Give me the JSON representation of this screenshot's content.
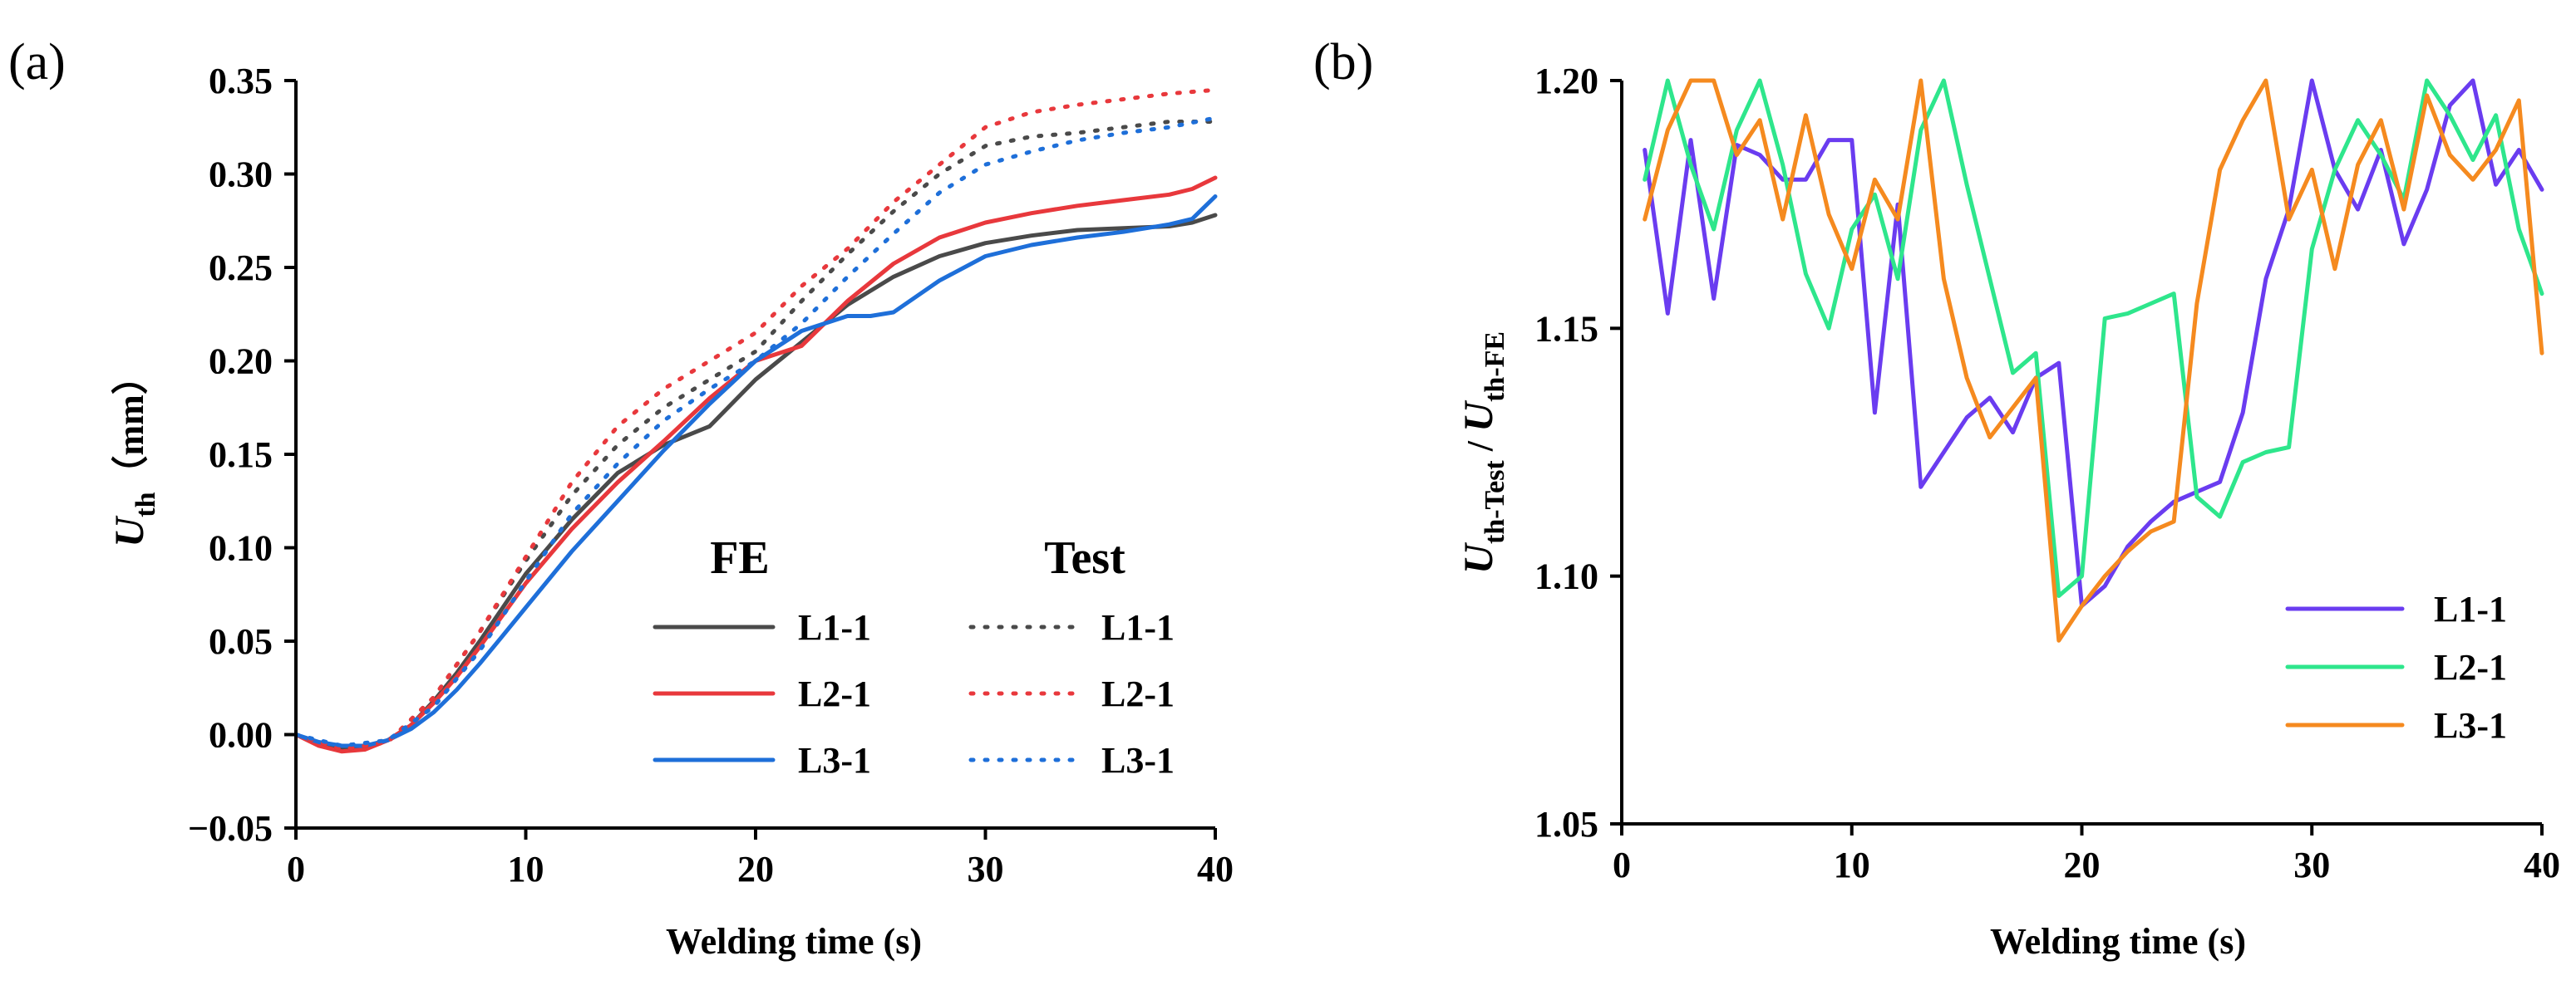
{
  "chart_data": [
    {
      "panel_label": "(a)",
      "type": "line",
      "xlabel": "Welding time (s)",
      "ylabel_main": "U",
      "ylabel_sub": "th",
      "ylabel_unit": "（mm）",
      "xlim": [
        0,
        40
      ],
      "ylim": [
        -0.05,
        0.35
      ],
      "xticks": [
        0,
        10,
        20,
        30,
        40
      ],
      "xtick_labels": [
        "0",
        "10",
        "20",
        "30",
        "40"
      ],
      "yticks": [
        -0.05,
        0.0,
        0.05,
        0.1,
        0.15,
        0.2,
        0.25,
        0.3,
        0.35
      ],
      "ytick_labels": [
        "−0.05",
        "0.00",
        "0.05",
        "0.10",
        "0.15",
        "0.20",
        "0.25",
        "0.30",
        "0.35"
      ],
      "legend_headers": [
        "FE",
        "Test"
      ],
      "legend_position": "bottom-right",
      "series": [
        {
          "name": "L1-1",
          "group": "FE",
          "style": "solid",
          "color": "#4a4a4a",
          "x": [
            0,
            1,
            2,
            3,
            4,
            5,
            6,
            7,
            8,
            9,
            10,
            12,
            14,
            16,
            18,
            20,
            22,
            24,
            26,
            28,
            30,
            32,
            34,
            36,
            38,
            39,
            40
          ],
          "y": [
            0,
            -0.005,
            -0.008,
            -0.007,
            -0.003,
            0.005,
            0.018,
            0.033,
            0.05,
            0.068,
            0.086,
            0.115,
            0.14,
            0.155,
            0.165,
            0.19,
            0.21,
            0.23,
            0.245,
            0.256,
            0.263,
            0.267,
            0.27,
            0.271,
            0.272,
            0.274,
            0.278
          ]
        },
        {
          "name": "L2-1",
          "group": "FE",
          "style": "solid",
          "color": "#e8383c",
          "x": [
            0,
            1,
            2,
            3,
            4,
            5,
            6,
            7,
            8,
            9,
            10,
            12,
            14,
            16,
            18,
            20,
            22,
            24,
            26,
            28,
            30,
            32,
            34,
            36,
            38,
            39,
            40
          ],
          "y": [
            0,
            -0.006,
            -0.009,
            -0.008,
            -0.003,
            0.005,
            0.017,
            0.031,
            0.047,
            0.064,
            0.081,
            0.11,
            0.135,
            0.157,
            0.18,
            0.2,
            0.208,
            0.232,
            0.252,
            0.266,
            0.274,
            0.279,
            0.283,
            0.286,
            0.289,
            0.292,
            0.298
          ]
        },
        {
          "name": "L3-1",
          "group": "FE",
          "style": "solid",
          "color": "#1e6fd9",
          "x": [
            0,
            1,
            2,
            3,
            4,
            5,
            6,
            7,
            8,
            9,
            10,
            12,
            14,
            16,
            18,
            20,
            22,
            24,
            25,
            26,
            28,
            30,
            32,
            34,
            36,
            38,
            39,
            40
          ],
          "y": [
            0,
            -0.004,
            -0.006,
            -0.006,
            -0.003,
            0.003,
            0.012,
            0.024,
            0.038,
            0.053,
            0.068,
            0.098,
            0.125,
            0.152,
            0.177,
            0.2,
            0.216,
            0.224,
            0.224,
            0.226,
            0.243,
            0.256,
            0.262,
            0.266,
            0.269,
            0.273,
            0.276,
            0.288
          ]
        },
        {
          "name": "L1-1",
          "group": "Test",
          "style": "dotted",
          "color": "#4a4a4a",
          "x": [
            0,
            2,
            4,
            6,
            8,
            10,
            12,
            14,
            16,
            18,
            20,
            22,
            24,
            26,
            28,
            30,
            32,
            34,
            36,
            38,
            40
          ],
          "y": [
            0,
            -0.008,
            -0.004,
            0.02,
            0.055,
            0.093,
            0.128,
            0.155,
            0.175,
            0.19,
            0.205,
            0.232,
            0.257,
            0.28,
            0.3,
            0.315,
            0.32,
            0.322,
            0.325,
            0.328,
            0.328
          ]
        },
        {
          "name": "L2-1",
          "group": "Test",
          "style": "dotted",
          "color": "#e8383c",
          "x": [
            0,
            2,
            4,
            6,
            8,
            10,
            12,
            14,
            16,
            18,
            20,
            22,
            24,
            26,
            28,
            30,
            32,
            34,
            36,
            38,
            40
          ],
          "y": [
            0,
            -0.008,
            -0.004,
            0.02,
            0.055,
            0.095,
            0.135,
            0.165,
            0.185,
            0.2,
            0.215,
            0.24,
            0.26,
            0.285,
            0.305,
            0.325,
            0.333,
            0.337,
            0.34,
            0.343,
            0.345
          ]
        },
        {
          "name": "L3-1",
          "group": "Test",
          "style": "dotted",
          "color": "#1e6fd9",
          "x": [
            0,
            2,
            4,
            6,
            8,
            10,
            12,
            14,
            16,
            18,
            20,
            22,
            24,
            26,
            28,
            30,
            32,
            34,
            36,
            38,
            40
          ],
          "y": [
            0,
            -0.006,
            -0.003,
            0.015,
            0.045,
            0.082,
            0.118,
            0.145,
            0.168,
            0.185,
            0.2,
            0.22,
            0.245,
            0.268,
            0.29,
            0.305,
            0.312,
            0.318,
            0.322,
            0.325,
            0.33
          ]
        }
      ]
    },
    {
      "panel_label": "(b)",
      "type": "line",
      "xlabel": "Welding time (s)",
      "ylabel_num_main": "U",
      "ylabel_num_sub": "th-Test",
      "ylabel_slash": " / ",
      "ylabel_den_main": "U",
      "ylabel_den_sub": "th-FE",
      "xlim": [
        0,
        40
      ],
      "ylim": [
        1.05,
        1.2
      ],
      "xticks": [
        0,
        10,
        20,
        30,
        40
      ],
      "xtick_labels": [
        "0",
        "10",
        "20",
        "30",
        "40"
      ],
      "yticks": [
        1.05,
        1.1,
        1.15,
        1.2
      ],
      "ytick_labels": [
        "1.05",
        "1.10",
        "1.15",
        "1.20"
      ],
      "legend_position": "bottom-right",
      "series": [
        {
          "name": "L1-1",
          "color": "#6a3cf0",
          "x": [
            1,
            2,
            3,
            4,
            5,
            6,
            7,
            8,
            9,
            10,
            11,
            12,
            13,
            14,
            15,
            16,
            17,
            18,
            19,
            20,
            21,
            22,
            23,
            24,
            25,
            26,
            27,
            28,
            29,
            30,
            31,
            32,
            33,
            34,
            35,
            36,
            37,
            38,
            39,
            40
          ],
          "y": [
            1.186,
            1.153,
            1.188,
            1.156,
            1.187,
            1.185,
            1.18,
            1.18,
            1.188,
            1.188,
            1.133,
            1.175,
            1.118,
            1.125,
            1.132,
            1.136,
            1.129,
            1.14,
            1.143,
            1.094,
            1.098,
            1.106,
            1.111,
            1.115,
            1.117,
            1.119,
            1.133,
            1.16,
            1.174,
            1.2,
            1.182,
            1.174,
            1.186,
            1.167,
            1.178,
            1.195,
            1.2,
            1.179,
            1.186,
            1.178
          ]
        },
        {
          "name": "L2-1",
          "color": "#2ee68c",
          "x": [
            1,
            2,
            3,
            4,
            5,
            6,
            7,
            8,
            9,
            10,
            11,
            12,
            13,
            14,
            15,
            16,
            17,
            18,
            19,
            20,
            21,
            22,
            23,
            24,
            25,
            26,
            27,
            28,
            29,
            30,
            31,
            32,
            33,
            34,
            35,
            36,
            37,
            38,
            39,
            40
          ],
          "y": [
            1.18,
            1.2,
            1.183,
            1.17,
            1.19,
            1.2,
            1.183,
            1.161,
            1.15,
            1.17,
            1.177,
            1.16,
            1.19,
            1.2,
            1.179,
            1.16,
            1.141,
            1.145,
            1.096,
            1.1,
            1.152,
            1.153,
            1.155,
            1.157,
            1.116,
            1.112,
            1.123,
            1.125,
            1.126,
            1.166,
            1.182,
            1.192,
            1.185,
            1.176,
            1.2,
            1.193,
            1.184,
            1.193,
            1.17,
            1.157
          ]
        },
        {
          "name": "L3-1",
          "color": "#f58a1f",
          "x": [
            1,
            2,
            3,
            4,
            5,
            6,
            7,
            8,
            9,
            10,
            11,
            12,
            13,
            14,
            15,
            16,
            17,
            18,
            19,
            20,
            21,
            22,
            23,
            24,
            25,
            26,
            27,
            28,
            29,
            30,
            31,
            32,
            33,
            34,
            35,
            36,
            37,
            38,
            39,
            40
          ],
          "y": [
            1.172,
            1.19,
            1.2,
            1.2,
            1.185,
            1.192,
            1.172,
            1.193,
            1.173,
            1.162,
            1.18,
            1.172,
            1.2,
            1.16,
            1.14,
            1.128,
            1.134,
            1.14,
            1.087,
            1.094,
            1.1,
            1.105,
            1.109,
            1.111,
            1.155,
            1.182,
            1.192,
            1.2,
            1.172,
            1.182,
            1.162,
            1.183,
            1.192,
            1.174,
            1.197,
            1.185,
            1.18,
            1.186,
            1.196,
            1.145
          ]
        }
      ]
    }
  ]
}
